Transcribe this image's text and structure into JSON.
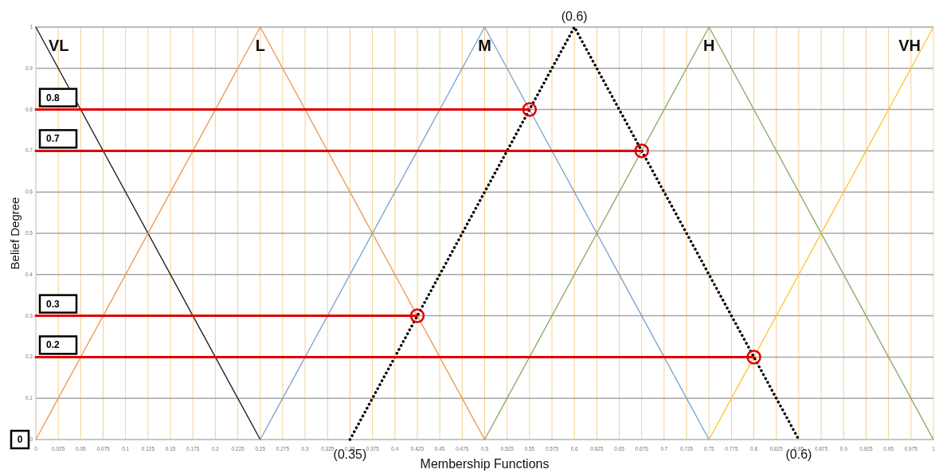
{
  "chart_data": {
    "type": "line",
    "xlabel": "Membership Functions",
    "ylabel": "Belief Degree",
    "xlim": [
      0,
      1
    ],
    "ylim": [
      0,
      1
    ],
    "xticks": [
      0,
      0.025,
      0.05,
      0.075,
      0.1,
      0.125,
      0.15,
      0.175,
      0.2,
      0.225,
      0.25,
      0.275,
      0.3,
      0.325,
      0.35,
      0.375,
      0.4,
      0.425,
      0.45,
      0.475,
      0.5,
      0.525,
      0.55,
      0.575,
      0.6,
      0.625,
      0.65,
      0.675,
      0.7,
      0.725,
      0.75,
      0.775,
      0.8,
      0.825,
      0.85,
      0.875,
      0.9,
      0.925,
      0.95,
      0.975,
      1
    ],
    "yticks": [
      0,
      0.1,
      0.2,
      0.3,
      0.4,
      0.5,
      0.6,
      0.7,
      0.8,
      0.9,
      1
    ],
    "grid": true,
    "marker": "none",
    "series": [
      {
        "name": "VL",
        "color": "#222222",
        "x": [
          0,
          0.25
        ],
        "values": [
          1,
          0
        ]
      },
      {
        "name": "L",
        "color": "#ed9a5a",
        "x": [
          0,
          0.25,
          0.5
        ],
        "values": [
          0,
          1,
          0
        ]
      },
      {
        "name": "M",
        "color": "#7ea6cf",
        "x": [
          0.25,
          0.5,
          0.75
        ],
        "values": [
          0,
          1,
          0
        ]
      },
      {
        "name": "H",
        "color": "#8faa6a",
        "x": [
          0.5,
          0.75,
          1
        ],
        "values": [
          0,
          1,
          0
        ]
      },
      {
        "name": "VH",
        "color": "#ffc533",
        "x": [
          0.75,
          1
        ],
        "values": [
          0,
          1
        ]
      },
      {
        "color": "#000000",
        "line_style": "dotted",
        "x": [
          0.35,
          0.6,
          0.85
        ],
        "values": [
          0,
          1,
          0
        ]
      },
      {
        "color": "#e00000",
        "x": [
          0,
          0.55
        ],
        "values": [
          0.8,
          0.8
        ]
      },
      {
        "color": "#e00000",
        "x": [
          0,
          0.675
        ],
        "values": [
          0.7,
          0.7
        ]
      },
      {
        "color": "#e00000",
        "x": [
          0,
          0.425
        ],
        "values": [
          0.3,
          0.3
        ]
      },
      {
        "color": "#e00000",
        "x": [
          0,
          0.8
        ],
        "values": [
          0.2,
          0.2
        ]
      },
      {
        "type": "scatter",
        "marker": "circle",
        "color": "#e00000",
        "x": [
          0.55,
          0.675,
          0.425,
          0.8
        ],
        "values": [
          0.8,
          0.7,
          0.3,
          0.2
        ]
      }
    ],
    "annotations": [
      {
        "text": "0.8",
        "x": 0,
        "y": 0.8
      },
      {
        "text": "0.7",
        "x": 0,
        "y": 0.7
      },
      {
        "text": "0.3",
        "x": 0,
        "y": 0.3
      },
      {
        "text": "0.2",
        "x": 0,
        "y": 0.2
      },
      {
        "text": "0",
        "x": 0,
        "y": 0
      },
      {
        "text": "(0.6)",
        "x": 0.6,
        "y": 1
      },
      {
        "text": "(0.35)",
        "x": 0.35,
        "y": 0
      },
      {
        "text": "(0.6)",
        "x": 0.85,
        "y": 0
      }
    ]
  }
}
